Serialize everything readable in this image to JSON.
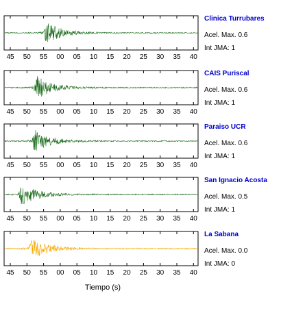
{
  "chart_data": {
    "type": "line",
    "xlabel": "Tiempo (s)",
    "panels": [
      {
        "station": "Clinica Turrubares",
        "acel_label": "Acel. Max.",
        "acel_value": "0.6",
        "int_label": "Int JMA:",
        "int_value": "1",
        "color": "#1a6b1a",
        "ticks": [
          "45",
          "50",
          "55",
          "00",
          "05",
          "10",
          "15",
          "20",
          "25",
          "30",
          "35",
          "40"
        ],
        "onset_tick_index": 2.0,
        "peak_amplitude": 0.85
      },
      {
        "station": "CAIS Puriscal",
        "acel_label": "Acel. Max.",
        "acel_value": "0.6",
        "int_label": "Int JMA:",
        "int_value": "1",
        "color": "#1a6b1a",
        "ticks": [
          "45",
          "50",
          "55",
          "00",
          "05",
          "10",
          "15",
          "20",
          "25",
          "30",
          "35",
          "40"
        ],
        "onset_tick_index": 1.4,
        "peak_amplitude": 0.9
      },
      {
        "station": "Paraiso UCR",
        "acel_label": "Acel. Max.",
        "acel_value": "0.6",
        "int_label": "Int JMA:",
        "int_value": "1",
        "color": "#1a6b1a",
        "ticks": [
          "45",
          "50",
          "55",
          "00",
          "05",
          "10",
          "15",
          "20",
          "25",
          "30",
          "35",
          "40"
        ],
        "onset_tick_index": 1.3,
        "peak_amplitude": 0.85
      },
      {
        "station": "San Ignacio Acosta",
        "acel_label": "Acel. Max.",
        "acel_value": "0.5",
        "int_label": "Int JMA:",
        "int_value": "1",
        "color": "#1a6b1a",
        "ticks": [
          "45",
          "50",
          "55",
          "00",
          "05",
          "10",
          "15",
          "20",
          "25",
          "30",
          "35",
          "40"
        ],
        "onset_tick_index": 0.5,
        "peak_amplitude": 0.9
      },
      {
        "station": "La Sabana",
        "acel_label": "Acel. Max.",
        "acel_value": "0.0",
        "int_label": "Int JMA:",
        "int_value": "0",
        "color": "#f5a800",
        "ticks": [
          "45",
          "50",
          "55",
          "00",
          "05",
          "10",
          "15",
          "20",
          "25",
          "30",
          "35",
          "40"
        ],
        "onset_tick_index": 1.1,
        "peak_amplitude": 0.95
      }
    ]
  }
}
